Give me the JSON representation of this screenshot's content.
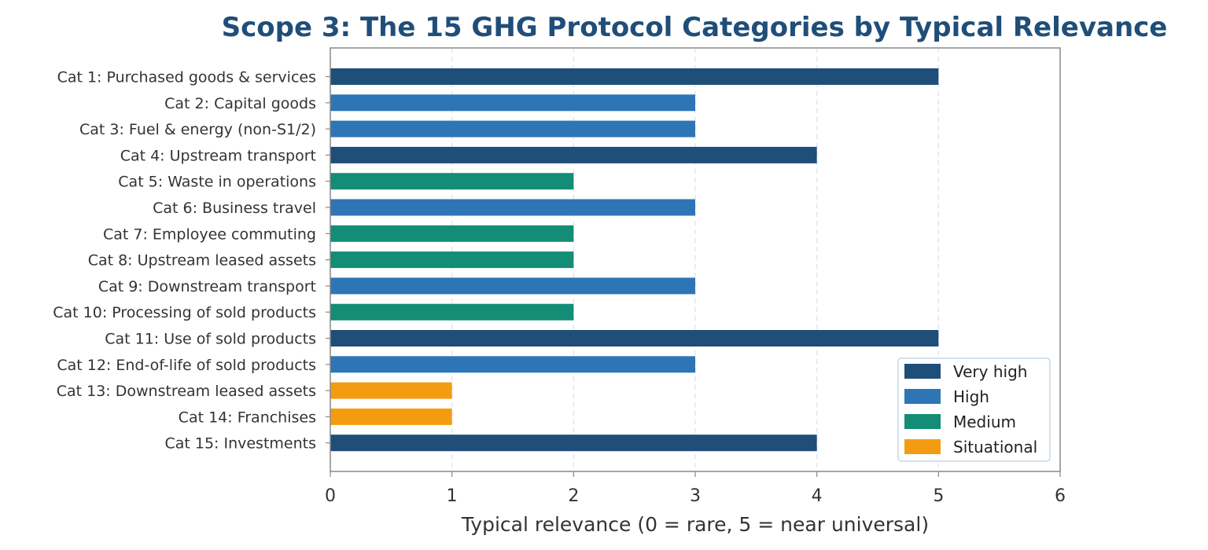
{
  "chart_data": {
    "type": "bar",
    "orientation": "horizontal",
    "title": "Scope 3: The 15 GHG Protocol Categories by Typical Relevance",
    "xlabel": "Typical relevance (0 = rare, 5 = near universal)",
    "ylabel": "",
    "xlim": [
      0,
      6
    ],
    "xticks": [
      "0",
      "1",
      "2",
      "3",
      "4",
      "5",
      "6"
    ],
    "grid": "vertical dashed",
    "legend_position": "lower-right",
    "categories": [
      "Cat 1: Purchased goods & services",
      "Cat 2: Capital goods",
      "Cat 3: Fuel & energy (non-S1/2)",
      "Cat 4: Upstream transport",
      "Cat 5: Waste in operations",
      "Cat 6: Business travel",
      "Cat 7: Employee commuting",
      "Cat 8: Upstream leased assets",
      "Cat 9: Downstream transport",
      "Cat 10: Processing of sold products",
      "Cat 11: Use of sold products",
      "Cat 12: End-of-life of sold products",
      "Cat 13: Downstream leased assets",
      "Cat 14: Franchises",
      "Cat 15: Investments"
    ],
    "values": [
      5,
      3,
      3,
      4,
      2,
      3,
      2,
      2,
      3,
      2,
      5,
      3,
      1,
      1,
      4
    ],
    "levels": [
      "Very high",
      "High",
      "High",
      "Very high",
      "Medium",
      "High",
      "Medium",
      "Medium",
      "High",
      "Medium",
      "Very high",
      "High",
      "Situational",
      "Situational",
      "Very high"
    ],
    "legend": [
      {
        "name": "Very high",
        "color": "#1f4e79"
      },
      {
        "name": "High",
        "color": "#2e75b6"
      },
      {
        "name": "Medium",
        "color": "#138d75"
      },
      {
        "name": "Situational",
        "color": "#f39c12"
      }
    ]
  }
}
